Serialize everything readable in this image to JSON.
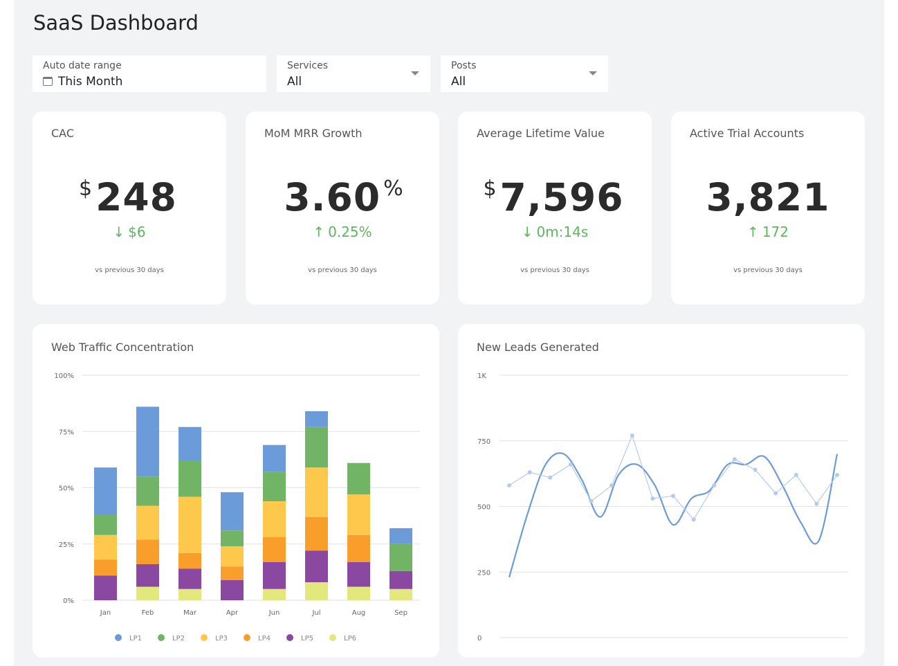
{
  "page": {
    "title": "SaaS Dashboard"
  },
  "filters": [
    {
      "label": "Auto date range",
      "value": "This Month",
      "icon": "calendar-icon"
    },
    {
      "label": "Services",
      "value": "All",
      "icon": "chevron-down-icon"
    },
    {
      "label": "Posts",
      "value": "All",
      "icon": "chevron-down-icon"
    }
  ],
  "kpis": [
    {
      "label": "CAC",
      "prefix": "$",
      "value": "248",
      "suffix": "",
      "delta_arrow": "↓",
      "delta": "$6",
      "sub": "vs previous 30 days"
    },
    {
      "label": "MoM MRR Growth",
      "prefix": "",
      "value": "3.60",
      "suffix": "%",
      "delta_arrow": "↑",
      "delta": "0.25%",
      "sub": "vs previous 30 days"
    },
    {
      "label": "Average Lifetime Value",
      "prefix": "$",
      "value": "7,596",
      "suffix": "",
      "delta_arrow": "↓",
      "delta": "0m:14s",
      "sub": "vs previous 30 days"
    },
    {
      "label": "Active Trial Accounts",
      "prefix": "",
      "value": "3,821",
      "suffix": "",
      "delta_arrow": "↑",
      "delta": "172",
      "sub": "vs previous 30 days"
    }
  ],
  "colors": {
    "positive": "#5cb85c",
    "line": "#6b9bd8",
    "line_light": "#b5cbe9"
  },
  "chart_data": [
    {
      "type": "bar",
      "stacked": true,
      "title": "Web Traffic Concentration",
      "categories": [
        "Jan",
        "Feb",
        "Mar",
        "Apr",
        "Jun",
        "Jul",
        "Aug",
        "Sep"
      ],
      "ylim": [
        0,
        100
      ],
      "yticks": [
        "0%",
        "25%",
        "50%",
        "75%",
        "100%"
      ],
      "ytick_values": [
        0,
        25,
        50,
        75,
        100
      ],
      "grid": true,
      "legend_position": "bottom",
      "series": [
        {
          "name": "LP1",
          "color": "#6b9bd8",
          "values": [
            21,
            31,
            15,
            17,
            12,
            7,
            0,
            7
          ]
        },
        {
          "name": "LP2",
          "color": "#72b466",
          "values": [
            9,
            13,
            16,
            7,
            13,
            18,
            14,
            12
          ]
        },
        {
          "name": "LP3",
          "color": "#fdc84b",
          "values": [
            11,
            15,
            25,
            9,
            16,
            22,
            18,
            0
          ]
        },
        {
          "name": "LP4",
          "color": "#f99e2a",
          "values": [
            7,
            11,
            7,
            6,
            11,
            15,
            12,
            0
          ]
        },
        {
          "name": "LP5",
          "color": "#8b48a0",
          "values": [
            11,
            10,
            9,
            9,
            12,
            14,
            11,
            8
          ]
        },
        {
          "name": "LP6",
          "color": "#e3e87c",
          "values": [
            0,
            6,
            5,
            0,
            5,
            8,
            6,
            5
          ]
        }
      ]
    },
    {
      "type": "line",
      "title": "New Leads Generated",
      "ylim": [
        0,
        1000
      ],
      "yticks": [
        "0",
        "250",
        "500",
        "750",
        "1K"
      ],
      "ytick_values": [
        0,
        250,
        500,
        750,
        1000
      ],
      "grid": true,
      "series": [
        {
          "style": "smooth",
          "color": "#6b9bd8",
          "values": [
            230,
            470,
            660,
            700,
            600,
            460,
            620,
            660,
            580,
            430,
            530,
            560,
            660,
            660,
            690,
            580,
            440,
            370,
            700
          ]
        },
        {
          "style": "points",
          "color": "#b5cbe9",
          "values": [
            580,
            630,
            610,
            660,
            520,
            580,
            770,
            530,
            540,
            450,
            580,
            680,
            640,
            550,
            620,
            510,
            620
          ]
        }
      ]
    }
  ]
}
